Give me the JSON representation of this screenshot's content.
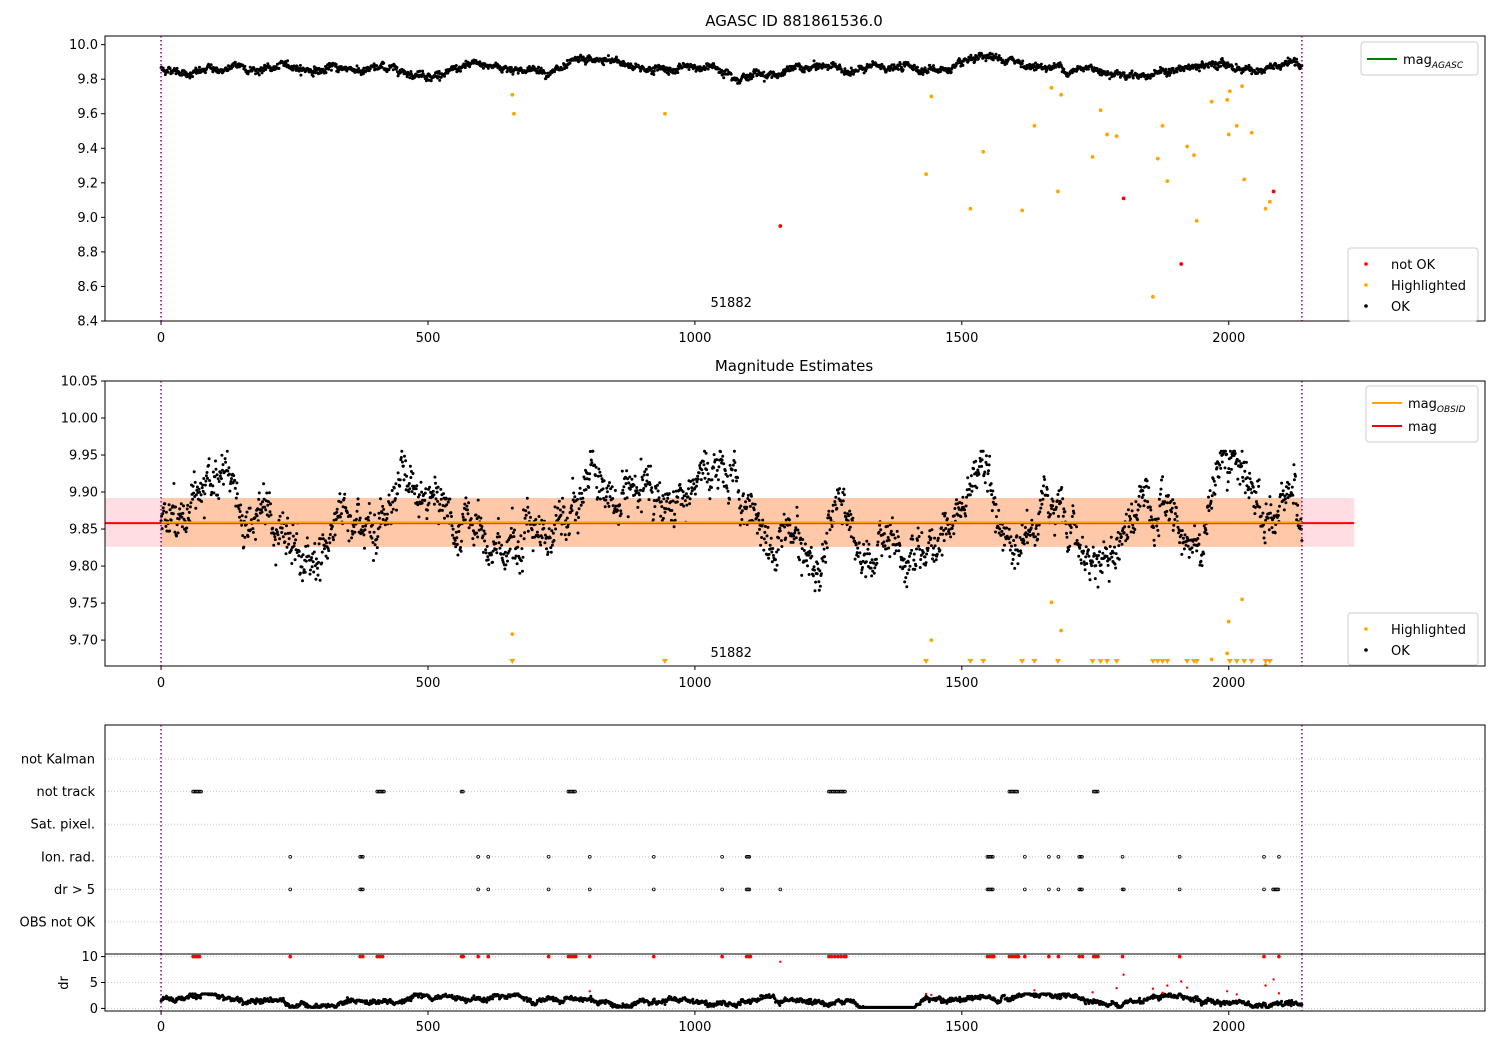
{
  "figure": {
    "background": "#ffffff"
  },
  "colors": {
    "ok": "#000000",
    "highlighted": "#ffa500",
    "not_ok": "#ff0000",
    "mag_agasc": "#008000",
    "mag_obsid": "#ffa500",
    "mag": "#ff0000",
    "band_obsid": "#ffc8a8",
    "band_mag": "#ffdde3",
    "obsid_divider": "#800080",
    "flag_grid": "#c8c8c8"
  },
  "chart_data": [
    {
      "id": "top",
      "type": "scatter",
      "title": "AGASC ID 881861536.0",
      "xlabel": "",
      "ylabel": "",
      "xlim": [
        -105,
        2480
      ],
      "ylim": [
        8.4,
        10.05
      ],
      "xticks": [
        0,
        500,
        1000,
        1500,
        2000
      ],
      "yticks": [
        8.4,
        8.6,
        8.8,
        9.0,
        9.2,
        9.4,
        9.6,
        9.8,
        10.0
      ],
      "ytick_decimals": 1,
      "grid": false,
      "obsid_boundaries": [
        0,
        2137
      ],
      "obsid_label": {
        "text": "51882",
        "x": 1068,
        "y": 8.48
      },
      "series_ok": {
        "name": "OK",
        "x_start": 0,
        "x_end": 2137,
        "count": 2138,
        "baseline": 9.86,
        "y_min": 9.77,
        "y_max": 9.95,
        "description": "dense band of OK points near 9.86"
      },
      "series": [
        {
          "name": "Highlighted",
          "color": "#ffa500",
          "points": [
            [
              658,
              9.71
            ],
            [
              661,
              9.6
            ],
            [
              944,
              9.6
            ],
            [
              1433,
              9.25
            ],
            [
              1443,
              9.7
            ],
            [
              1516,
              9.05
            ],
            [
              1540,
              9.38
            ],
            [
              1613,
              9.04
            ],
            [
              1636,
              9.53
            ],
            [
              1668,
              9.75
            ],
            [
              1680,
              9.15
            ],
            [
              1686,
              9.71
            ],
            [
              1745,
              9.35
            ],
            [
              1760,
              9.62
            ],
            [
              1772,
              9.48
            ],
            [
              1790,
              9.47
            ],
            [
              1858,
              8.54
            ],
            [
              1867,
              9.34
            ],
            [
              1876,
              9.53
            ],
            [
              1885,
              9.21
            ],
            [
              1922,
              9.41
            ],
            [
              1935,
              9.36
            ],
            [
              1940,
              8.98
            ],
            [
              1968,
              9.67
            ],
            [
              1997,
              9.68
            ],
            [
              2000,
              9.48
            ],
            [
              2002,
              9.73
            ],
            [
              2015,
              9.53
            ],
            [
              2025,
              9.76
            ],
            [
              2029,
              9.22
            ],
            [
              2043,
              9.49
            ],
            [
              2069,
              9.05
            ],
            [
              2077,
              9.09
            ]
          ]
        },
        {
          "name": "not OK",
          "color": "#ff0000",
          "points": [
            [
              1160,
              8.95
            ],
            [
              1803,
              9.11
            ],
            [
              1911,
              8.73
            ],
            [
              2084,
              9.15
            ]
          ]
        }
      ],
      "legend_top": {
        "position": "upper right",
        "entries": [
          {
            "label": "mag",
            "sub": "AGASC",
            "color": "#008000"
          }
        ]
      },
      "legend_bottom": {
        "position": "lower right",
        "entries": [
          {
            "label": "not OK",
            "color": "#ff0000"
          },
          {
            "label": "Highlighted",
            "color": "#ffa500"
          },
          {
            "label": "OK",
            "color": "#000000"
          }
        ]
      }
    },
    {
      "id": "middle",
      "type": "scatter",
      "title": "Magnitude Estimates",
      "xlabel": "",
      "ylabel": "",
      "xlim": [
        -105,
        2480
      ],
      "ylim": [
        9.665,
        10.05
      ],
      "xticks": [
        0,
        500,
        1000,
        1500,
        2000
      ],
      "yticks": [
        9.7,
        9.75,
        9.8,
        9.85,
        9.9,
        9.95,
        10.0,
        10.05
      ],
      "ytick_decimals": 2,
      "grid": false,
      "obsid_boundaries": [
        0,
        2137
      ],
      "obsid_label": {
        "text": "51882",
        "x": 1068,
        "y": 9.677
      },
      "mag_obsid": {
        "value": 9.859,
        "x_range": [
          0,
          2137
        ],
        "band": [
          9.826,
          9.892
        ]
      },
      "mag": {
        "value": 9.858,
        "x_range": [
          -105,
          2235
        ],
        "band": [
          9.826,
          9.892
        ]
      },
      "series_ok": {
        "name": "OK",
        "x_start": 0,
        "x_end": 2137,
        "count": 2138,
        "baseline": 9.858,
        "y_min": 9.762,
        "y_max": 9.955,
        "description": "OK points scattered around 9.86"
      },
      "series": [
        {
          "name": "Highlighted",
          "color": "#ffa500",
          "points": [
            [
              658,
              9.708
            ],
            [
              1443,
              9.7
            ],
            [
              1668,
              9.751
            ],
            [
              1686,
              9.713
            ],
            [
              1997,
              9.682
            ],
            [
              2000,
              9.725
            ],
            [
              2025,
              9.755
            ],
            [
              1968,
              9.674
            ],
            [
              2069,
              9.666
            ]
          ]
        }
      ],
      "below_axis_markers": [
        658,
        944,
        1433,
        1516,
        1540,
        1613,
        1636,
        1680,
        1745,
        1760,
        1772,
        1790,
        1858,
        1867,
        1876,
        1885,
        1922,
        1935,
        1940,
        2002,
        2015,
        2029,
        2043,
        2069,
        2077
      ],
      "legend_top": {
        "position": "upper right",
        "entries": [
          {
            "label": "mag",
            "sub": "OBSID",
            "color": "#ffa500"
          },
          {
            "label": "mag",
            "sub": "",
            "color": "#ff0000"
          }
        ]
      },
      "legend_bottom": {
        "position": "lower right",
        "entries": [
          {
            "label": "Highlighted",
            "color": "#ffa500"
          },
          {
            "label": "OK",
            "color": "#000000"
          }
        ]
      }
    },
    {
      "id": "flags",
      "type": "scatter",
      "title": "",
      "xlabel": "",
      "ylabel": "",
      "xlim": [
        -105,
        2480
      ],
      "categories": [
        "not Kalman",
        "not track",
        "Sat. pixel.",
        "Ion. rad.",
        "dr > 5",
        "OBS not OK"
      ],
      "grid": true,
      "obsid_boundaries": [
        0,
        2137
      ],
      "flags": {
        "not Kalman": [],
        "not track": [
          [
            60,
            75
          ],
          [
            405,
            418
          ],
          [
            563,
            566
          ],
          [
            763,
            777
          ],
          [
            1251,
            1283
          ],
          [
            1589,
            1606
          ],
          [
            1747,
            1755
          ]
        ],
        "Sat. pixel.": [],
        "Ion. rad.": [
          [
            242,
            242
          ],
          [
            373,
            378
          ],
          [
            594,
            594
          ],
          [
            613,
            613
          ],
          [
            726,
            726
          ],
          [
            803,
            803
          ],
          [
            923,
            923
          ],
          [
            1051,
            1051
          ],
          [
            1097,
            1104
          ],
          [
            1548,
            1560
          ],
          [
            1618,
            1618
          ],
          [
            1663,
            1663
          ],
          [
            1681,
            1681
          ],
          [
            1720,
            1726
          ],
          [
            1801,
            1801
          ],
          [
            1908,
            1908
          ],
          [
            2066,
            2066
          ],
          [
            2094,
            2094
          ]
        ],
        "dr > 5": [
          [
            242,
            242
          ],
          [
            373,
            378
          ],
          [
            594,
            594
          ],
          [
            613,
            613
          ],
          [
            726,
            726
          ],
          [
            803,
            803
          ],
          [
            923,
            923
          ],
          [
            1051,
            1051
          ],
          [
            1097,
            1104
          ],
          [
            1160,
            1160
          ],
          [
            1548,
            1560
          ],
          [
            1618,
            1618
          ],
          [
            1663,
            1663
          ],
          [
            1681,
            1681
          ],
          [
            1720,
            1726
          ],
          [
            1801,
            1804
          ],
          [
            1908,
            1908
          ],
          [
            2066,
            2066
          ],
          [
            2083,
            2094
          ]
        ],
        "OBS not OK": []
      }
    },
    {
      "id": "dr",
      "type": "scatter",
      "title": "",
      "xlabel": "",
      "ylabel": "dr",
      "xlim": [
        -105,
        2480
      ],
      "ylim": [
        -0.5,
        10.5
      ],
      "xticks": [
        0,
        500,
        1000,
        1500,
        2000
      ],
      "yticks": [
        0,
        5,
        10
      ],
      "grid": true,
      "obsid_boundaries": [
        0,
        2137
      ],
      "series_ok": {
        "name": "OK",
        "x_start": 0,
        "x_end": 2137,
        "count": 2138,
        "baseline": 1.4,
        "y_min": 0.2,
        "y_max": 2.8,
        "description": "black dr points between 0 and 3"
      },
      "clipped_at": 10,
      "clipped_x": [
        60,
        64,
        68,
        72,
        242,
        373,
        378,
        405,
        410,
        415,
        563,
        566,
        594,
        613,
        726,
        763,
        768,
        773,
        777,
        803,
        923,
        1051,
        1097,
        1101,
        1104,
        1251,
        1256,
        1262,
        1268,
        1274,
        1280,
        1283,
        1548,
        1552,
        1556,
        1560,
        1589,
        1594,
        1599,
        1604,
        1606,
        1618,
        1663,
        1681,
        1720,
        1726,
        1747,
        1751,
        1755,
        1801,
        1908,
        2066,
        2094
      ],
      "red_points": [
        [
          803,
          3.3
        ],
        [
          1160,
          9.0
        ],
        [
          1433,
          2.8
        ],
        [
          1443,
          2.6
        ],
        [
          1636,
          3.5
        ],
        [
          1745,
          3.1
        ],
        [
          1790,
          3.9
        ],
        [
          1803,
          6.5
        ],
        [
          1858,
          3.8
        ],
        [
          1876,
          3.0
        ],
        [
          1885,
          4.4
        ],
        [
          1911,
          5.2
        ],
        [
          1922,
          4.0
        ],
        [
          1997,
          3.3
        ],
        [
          2015,
          2.7
        ],
        [
          2069,
          4.4
        ],
        [
          2084,
          5.6
        ],
        [
          2094,
          2.9
        ]
      ]
    }
  ]
}
